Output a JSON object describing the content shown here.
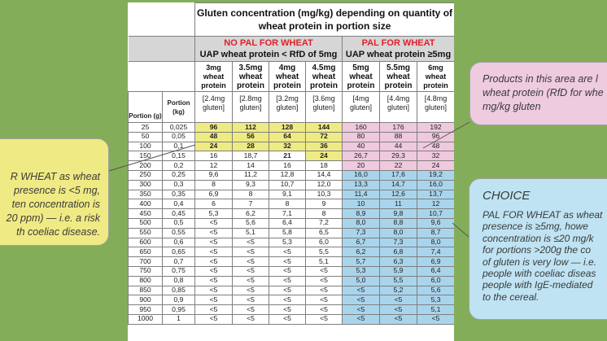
{
  "title": "Gluten concentration (mg/kg) depending on quantity of wheat protein in portion size",
  "groups": {
    "left_head": "NO PAL FOR WHEAT",
    "left_sub": "UAP wheat protein  < RfD of 5mg",
    "right_head": "PAL FOR WHEAT",
    "right_sub": "UAP wheat protein ≥5mg"
  },
  "col_headers": {
    "portion_g": "Portion (g)",
    "portion_kg": "Portion (kg)"
  },
  "doses": [
    {
      "dose": "3mg wheat protein",
      "gluten": "[2.4mg gluten]"
    },
    {
      "dose": "3.5mg wheat protein",
      "gluten": "[2.8mg gluten]"
    },
    {
      "dose": "4mg wheat protein",
      "gluten": "[3.2mg gluten]"
    },
    {
      "dose": "4.5mg wheat protein",
      "gluten": "[3.6mg gluten]"
    },
    {
      "dose": "5mg wheat protein",
      "gluten": "[4mg gluten]"
    },
    {
      "dose": "5.5mg wheat protein",
      "gluten": "[4.4mg gluten]"
    },
    {
      "dose": "6mg wheat protein",
      "gluten": "[4.8mg gluten]"
    }
  ],
  "rows": [
    [
      "25",
      "0,025",
      "96",
      "112",
      "128",
      "144",
      "160",
      "176",
      "192"
    ],
    [
      "50",
      "0,05",
      "48",
      "56",
      "64",
      "72",
      "80",
      "88",
      "96"
    ],
    [
      "100",
      "0,1",
      "24",
      "28",
      "32",
      "36",
      "40",
      "44",
      "48"
    ],
    [
      "150",
      "0,15",
      "16",
      "18,7",
      "21",
      "24",
      "26,7",
      "29,3",
      "32"
    ],
    [
      "200",
      "0,2",
      "12",
      "14",
      "16",
      "18",
      "20",
      "22",
      "24"
    ],
    [
      "250",
      "0,25",
      "9,6",
      "11,2",
      "12,8",
      "14,4",
      "16,0",
      "17,6",
      "19,2"
    ],
    [
      "300",
      "0,3",
      "8",
      "9,3",
      "10,7",
      "12,0",
      "13,3",
      "14,7",
      "16,0"
    ],
    [
      "350",
      "0,35",
      "6,9",
      "8",
      "9,1",
      "10,3",
      "11,4",
      "12,6",
      "13,7"
    ],
    [
      "400",
      "0,4",
      "6",
      "7",
      "8",
      "9",
      "10",
      "11",
      "12"
    ],
    [
      "450",
      "0,45",
      "5,3",
      "6,2",
      "7,1",
      "8",
      "8,9",
      "9,8",
      "10,7"
    ],
    [
      "500",
      "0,5",
      "<5",
      "5,6",
      "6,4",
      "7,2",
      "8,0",
      "8,8",
      "9,6"
    ],
    [
      "550",
      "0,55",
      "<5",
      "5,1",
      "5,8",
      "6,5",
      "7,3",
      "8,0",
      "8,7"
    ],
    [
      "600",
      "0,6",
      "<5",
      "<5",
      "5,3",
      "6,0",
      "6,7",
      "7,3",
      "8,0"
    ],
    [
      "650",
      "0,65",
      "<5",
      "<5",
      "<5",
      "5,5",
      "6,2",
      "6,8",
      "7,4"
    ],
    [
      "700",
      "0,7",
      "<5",
      "<5",
      "<5",
      "5,1",
      "5,7",
      "6,3",
      "6,9"
    ],
    [
      "750",
      "0,75",
      "<5",
      "<5",
      "<5",
      "<5",
      "5,3",
      "5,9",
      "6,4"
    ],
    [
      "800",
      "0,8",
      "<5",
      "<5",
      "<5",
      "<5",
      "5,0",
      "5,5",
      "6,0"
    ],
    [
      "850",
      "0,85",
      "<5",
      "<5",
      "<5",
      "<5",
      "<5",
      "5,2",
      "5,6"
    ],
    [
      "900",
      "0,9",
      "<5",
      "<5",
      "<5",
      "<5",
      "<5",
      "<5",
      "5,3"
    ],
    [
      "950",
      "0,95",
      "<5",
      "<5",
      "<5",
      "<5",
      "<5",
      "<5",
      "5,1"
    ],
    [
      "1000",
      "1",
      "<5",
      "<5",
      "<5",
      "<5",
      "<5",
      "<5",
      "<5"
    ]
  ],
  "callouts": {
    "left": "R WHEAT as wheat presence is <5 mg, ten concentration is 20 ppm) — i.e. a risk th coeliac disease.",
    "left_lines": [
      "R WHEAT as wheat",
      "presence is <5 mg,",
      "ten concentration is",
      "20 ppm) — i.e. a risk",
      "th coeliac disease."
    ],
    "pink_lines": [
      "Products in this area are l",
      "wheat protein (RfD for whe",
      "mg/kg gluten"
    ],
    "blue_title": "CHOICE",
    "blue_lines": [
      "PAL FOR WHEAT as wheat",
      "presence is ≥5mg, howe",
      "concentration is ≤20 mg/k",
      "for portions >200g the co",
      "of gluten is very low — i.e.",
      "people with coeliac diseas",
      "people with IgE-mediated",
      "to the cereal."
    ]
  },
  "colors": {
    "background": "#84ad5a",
    "yellow": "#efeb84",
    "pink": "#efc9de",
    "blue": "#a9d5ec",
    "red": "#e0202a"
  }
}
